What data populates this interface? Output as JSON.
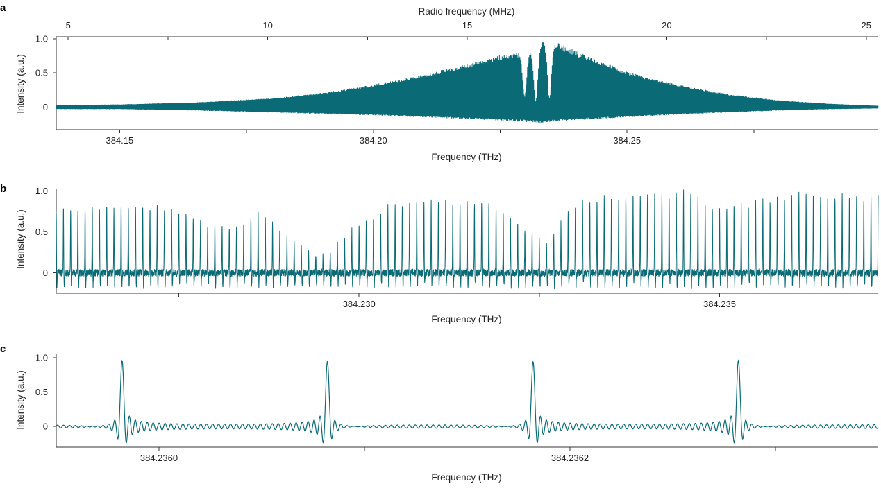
{
  "chart_data": [
    {
      "panel": "a",
      "type": "line",
      "style": "dense fringe trace (filled appearance)",
      "color": "#0a6b77",
      "xlabel": "Frequency (THz)",
      "top_xlabel": "Radio frequency (MHz)",
      "ylabel": "Intensity (a.u.)",
      "xlim": [
        384.1375,
        384.2995
      ],
      "top_xlim": [
        4.7,
        25.3
      ],
      "ylim": [
        -0.33,
        1.03
      ],
      "x_ticks": [
        {
          "value": 384.15,
          "label": "384.15"
        },
        {
          "value": 384.175,
          "label": ""
        },
        {
          "value": 384.2,
          "label": "384.20"
        },
        {
          "value": 384.225,
          "label": ""
        },
        {
          "value": 384.25,
          "label": "384.25"
        },
        {
          "value": 384.275,
          "label": ""
        }
      ],
      "top_ticks": [
        {
          "value": 5,
          "label": "5"
        },
        {
          "value": 7.5,
          "label": ""
        },
        {
          "value": 10,
          "label": "10"
        },
        {
          "value": 12.5,
          "label": ""
        },
        {
          "value": 15,
          "label": "15"
        },
        {
          "value": 17.5,
          "label": ""
        },
        {
          "value": 20,
          "label": "20"
        },
        {
          "value": 22.5,
          "label": ""
        },
        {
          "value": 25,
          "label": "25"
        }
      ],
      "y_ticks": [
        {
          "value": 0,
          "label": "0"
        },
        {
          "value": 0.5,
          "label": "0.5"
        },
        {
          "value": 1.0,
          "label": "1.0"
        }
      ],
      "envelope": {
        "x": [
          384.1375,
          384.15,
          384.165,
          384.18,
          384.19,
          384.2,
          384.21,
          384.22,
          384.225,
          384.228,
          384.2305,
          384.2315,
          384.2325,
          384.2335,
          384.2345,
          384.236,
          384.2375,
          384.24,
          384.25,
          384.26,
          384.27,
          384.28,
          384.29,
          384.2995
        ],
        "upper": [
          0.03,
          0.04,
          0.07,
          0.13,
          0.21,
          0.33,
          0.48,
          0.66,
          0.76,
          0.8,
          0.82,
          0.84,
          0.92,
          0.96,
          0.98,
          0.96,
          0.9,
          0.82,
          0.52,
          0.33,
          0.19,
          0.1,
          0.05,
          0.02
        ],
        "lower": [
          -0.03,
          -0.03,
          -0.05,
          -0.08,
          -0.1,
          -0.12,
          -0.15,
          -0.18,
          -0.2,
          -0.21,
          -0.22,
          -0.22,
          -0.23,
          -0.23,
          -0.22,
          -0.21,
          -0.2,
          -0.19,
          -0.15,
          -0.11,
          -0.08,
          -0.05,
          -0.03,
          -0.02
        ]
      },
      "dips": [
        {
          "x": 384.2298,
          "depth": 0.85
        },
        {
          "x": 384.232,
          "depth": 0.95
        },
        {
          "x": 384.2347,
          "depth": 0.9
        }
      ]
    },
    {
      "panel": "b",
      "type": "line",
      "style": "comb of sharp fringe peaks",
      "color": "#0a6b77",
      "xlabel": "Frequency (THz)",
      "ylabel": "Intensity (a.u.)",
      "xlim": [
        384.2258,
        384.2372
      ],
      "ylim": [
        -0.25,
        1.03
      ],
      "x_ticks": [
        {
          "value": 384.2275,
          "label": ""
        },
        {
          "value": 384.23,
          "label": "384.230"
        },
        {
          "value": 384.2325,
          "label": ""
        },
        {
          "value": 384.235,
          "label": "384.235"
        }
      ],
      "y_ticks": [
        {
          "value": 0,
          "label": "0"
        },
        {
          "value": 0.5,
          "label": "0.5"
        },
        {
          "value": 1.0,
          "label": "1.0"
        }
      ],
      "peak_spacing_thz": 0.0001,
      "first_peak": 384.2258,
      "peak_envelope": {
        "x": [
          384.2258,
          384.2266,
          384.2274,
          384.2278,
          384.2283,
          384.2286,
          384.229,
          384.2295,
          384.23,
          384.2305,
          384.231,
          384.2315,
          384.2318,
          384.2322,
          384.2326,
          384.233,
          384.2335,
          384.234,
          384.2346,
          384.235,
          384.2356,
          384.2362,
          384.2368,
          384.2372
        ],
        "values": [
          0.8,
          0.82,
          0.8,
          0.62,
          0.55,
          0.75,
          0.45,
          0.2,
          0.6,
          0.85,
          0.87,
          0.88,
          0.85,
          0.6,
          0.35,
          0.85,
          0.93,
          0.96,
          0.98,
          0.78,
          0.88,
          0.98,
          0.95,
          0.92
        ]
      }
    },
    {
      "panel": "c",
      "type": "line",
      "style": "sinc-like fringe peaks with side lobes",
      "color": "#0a6b77",
      "xlabel": "Frequency (THz)",
      "ylabel": "Intensity (a.u.)",
      "xlim": [
        384.23595,
        384.23635
      ],
      "ylim": [
        -0.3,
        1.05
      ],
      "x_ticks": [
        {
          "value": 384.236,
          "label": "384.2360"
        },
        {
          "value": 384.2361,
          "label": ""
        },
        {
          "value": 384.2362,
          "label": "384.2362"
        },
        {
          "value": 384.2363,
          "label": ""
        }
      ],
      "y_ticks": [
        {
          "value": 0,
          "label": "0"
        },
        {
          "value": 0.5,
          "label": "0.5"
        },
        {
          "value": 1.0,
          "label": "1.0"
        }
      ],
      "peaks": [
        {
          "x": 384.235982,
          "value": 0.95
        },
        {
          "x": 384.236082,
          "value": 0.95
        },
        {
          "x": 384.236182,
          "value": 0.94
        },
        {
          "x": 384.236282,
          "value": 0.96
        }
      ]
    }
  ]
}
